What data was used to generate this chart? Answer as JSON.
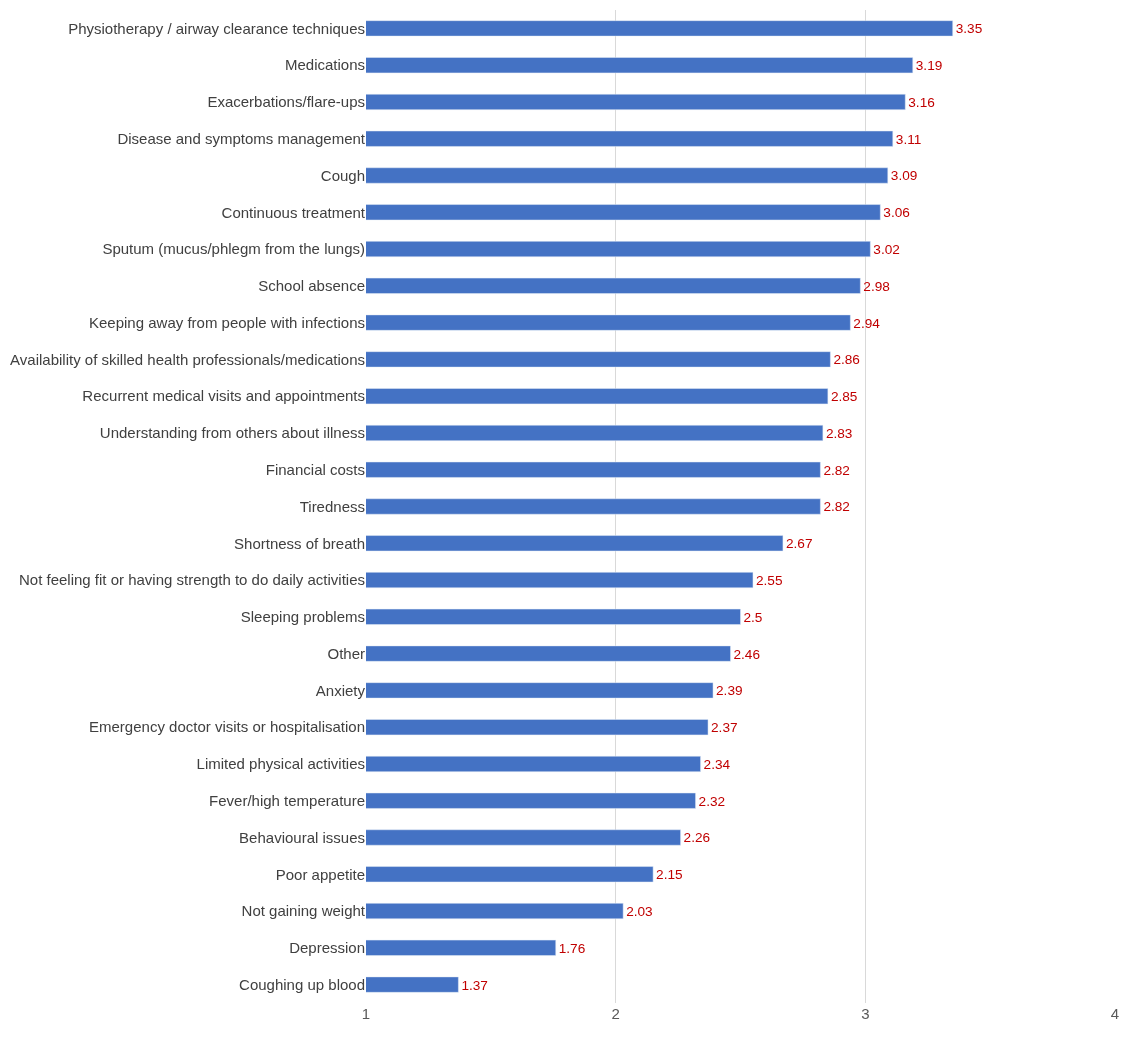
{
  "chart_data": {
    "type": "bar",
    "orientation": "horizontal",
    "categories": [
      "Physiotherapy / airway clearance techniques",
      "Medications",
      "Exacerbations/flare-ups",
      "Disease and symptoms management",
      "Cough",
      "Continuous treatment",
      "Sputum (mucus/phlegm from the lungs)",
      "School absence",
      "Keeping away from people with infections",
      "Availability of skilled health professionals/medications",
      "Recurrent medical visits and appointments",
      "Understanding from others about illness",
      "Financial costs",
      "Tiredness",
      "Shortness of breath",
      "Not feeling fit or having strength to do daily activities",
      "Sleeping problems",
      "Other",
      "Anxiety",
      "Emergency doctor visits or hospitalisation",
      "Limited physical activities",
      "Fever/high temperature",
      "Behavioural issues",
      "Poor appetite",
      "Not gaining weight",
      "Depression",
      "Coughing up blood"
    ],
    "values": [
      3.35,
      3.19,
      3.16,
      3.11,
      3.09,
      3.06,
      3.02,
      2.98,
      2.94,
      2.86,
      2.85,
      2.83,
      2.82,
      2.82,
      2.67,
      2.55,
      2.5,
      2.46,
      2.39,
      2.37,
      2.34,
      2.32,
      2.26,
      2.15,
      2.03,
      1.76,
      1.37
    ],
    "color": "#4472c4",
    "xlim": [
      1,
      4
    ],
    "xticks": [
      1,
      2,
      3,
      4
    ],
    "grid": "x",
    "data_labels": true
  }
}
